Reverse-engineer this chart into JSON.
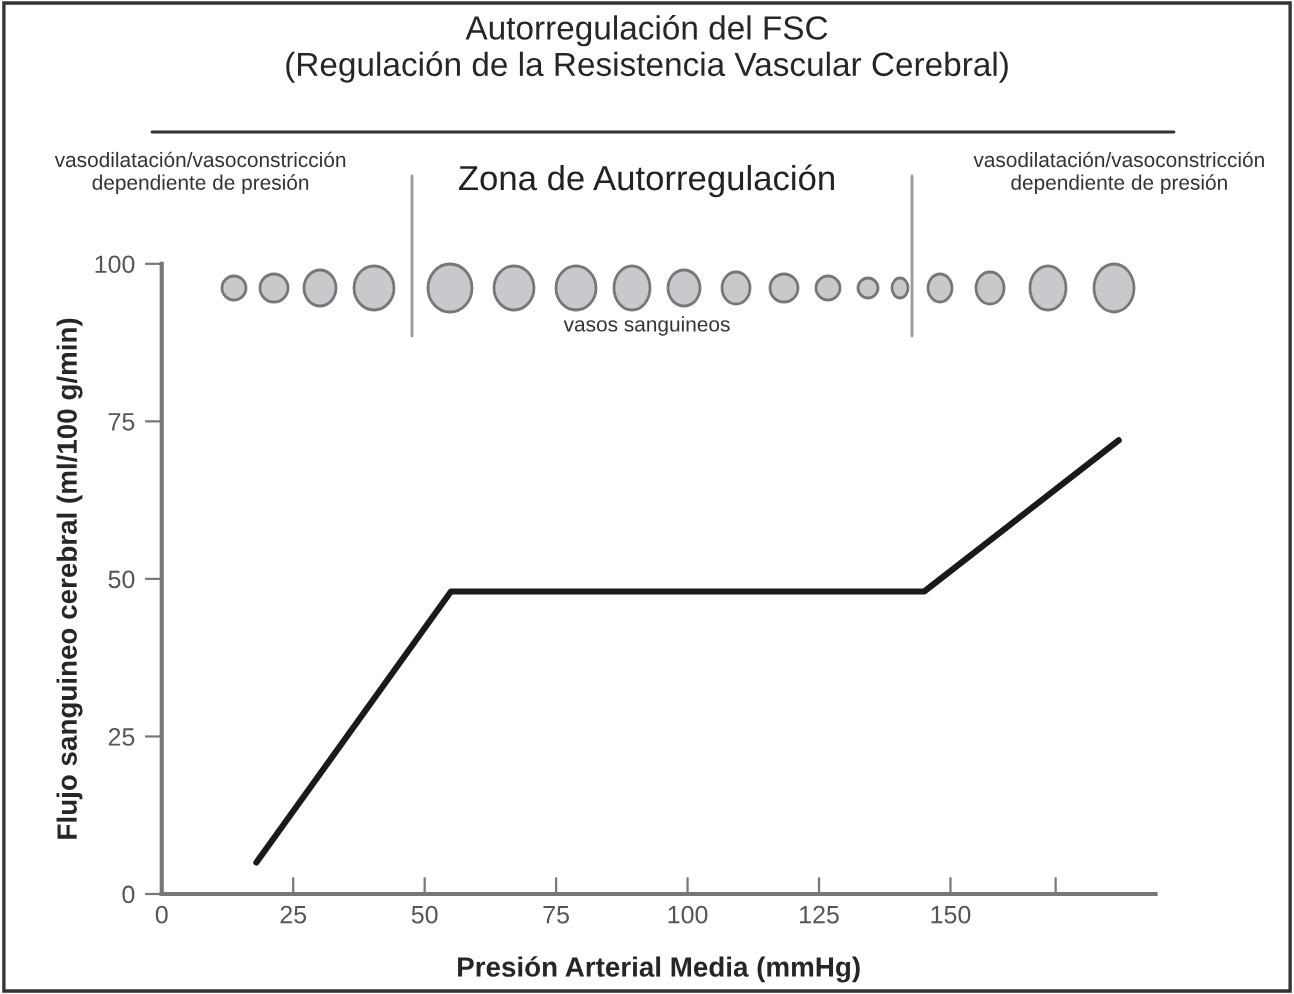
{
  "chart_data": {
    "type": "line",
    "title": "Autorregulación del FSC\n(Regulación de la Resistencia Vascular Cerebral)",
    "xlabel": "Presión Arterial Media (mmHg)",
    "ylabel": "Flujo sanguineo cerebral (ml/100 g/min)",
    "x": [
      18,
      55,
      145,
      182
    ],
    "series": [
      {
        "color": "#1a1a1a",
        "values": [
          5,
          48,
          48,
          72
        ]
      }
    ],
    "xlim": [
      0,
      189
    ],
    "ylim": [
      0,
      100
    ],
    "xticks": [
      0,
      25,
      50,
      75,
      100,
      125,
      150,
      {
        "value": 170,
        "label": null
      }
    ],
    "yticks": [
      0,
      25,
      50,
      75,
      100
    ],
    "grid": false,
    "legend": false,
    "marker": "none",
    "line_style": "solid",
    "annotations": [
      "vasodilatación/vasoconstricción\ndependiente de presión",
      "Zona de Autorregulación",
      "vasodilatación/vasoconstricción\ndependiente de presión",
      "vasos sanguineos"
    ]
  }
}
